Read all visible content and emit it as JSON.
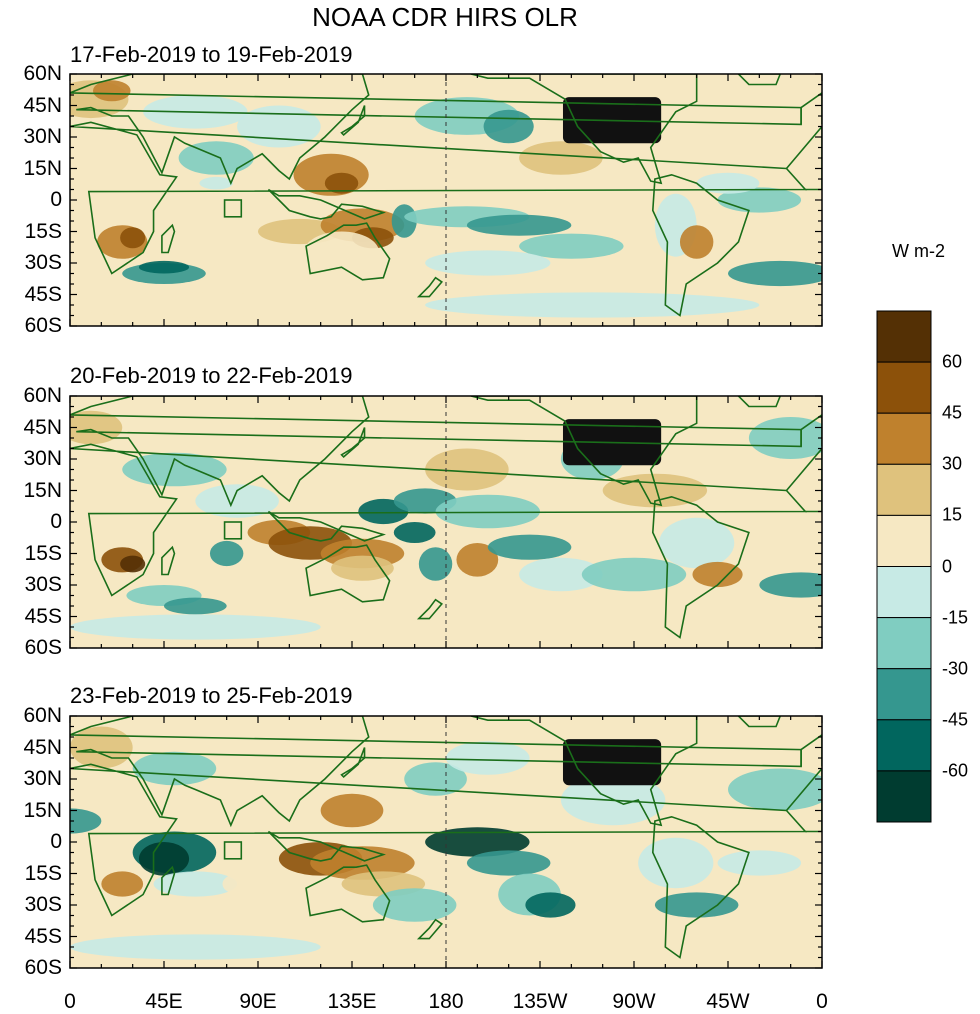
{
  "figure": {
    "title": "NOAA CDR HIRS OLR",
    "units": "W m-2"
  },
  "panels": [
    {
      "date_range": "17-Feb-2019 to 19-Feb-2019"
    },
    {
      "date_range": "20-Feb-2019 to 22-Feb-2019"
    },
    {
      "date_range": "23-Feb-2019 to 25-Feb-2019"
    }
  ],
  "axes": {
    "lat_labels": [
      "60N",
      "45N",
      "30N",
      "15N",
      "0",
      "15S",
      "30S",
      "45S",
      "60S"
    ],
    "lon_labels": [
      "0",
      "45E",
      "90E",
      "135E",
      "180",
      "135W",
      "90W",
      "45W",
      "0"
    ]
  },
  "colorbar": {
    "labels": [
      "60",
      "45",
      "30",
      "15",
      "0",
      "-15",
      "-30",
      "-45",
      "-60"
    ],
    "colors": [
      "#543005",
      "#8c510a",
      "#bf812d",
      "#dfc27d",
      "#f6e8c3",
      "#c7eae5",
      "#80cdc1",
      "#35978f",
      "#01665e",
      "#003c30"
    ]
  },
  "colors": {
    "coastline": "#1a6e1a",
    "background": "#f6e8c3"
  }
}
